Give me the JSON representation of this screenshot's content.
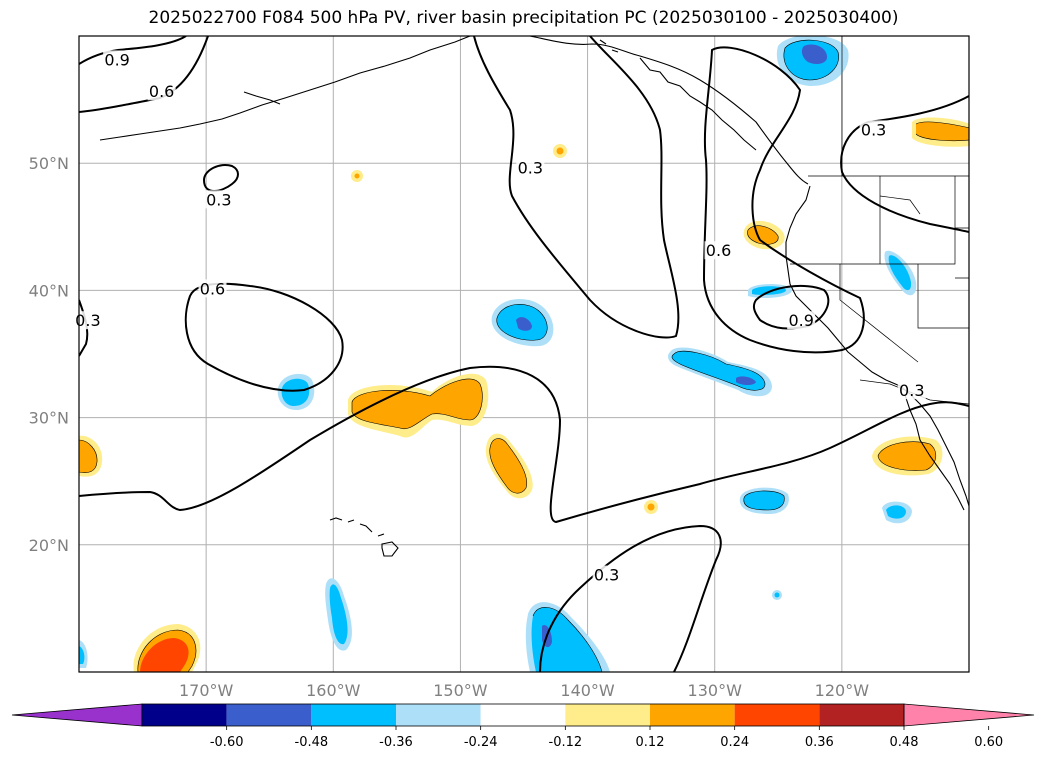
{
  "title": "2025022700 F084 500 hPa PV, river basin precipitation PC (2025030100 - 2025030400)",
  "map": {
    "lon_range": [
      -180,
      -110
    ],
    "lat_range": [
      10,
      60
    ],
    "lat_ticks": [
      {
        "value": 20,
        "label": "20°N"
      },
      {
        "value": 30,
        "label": "30°N"
      },
      {
        "value": 40,
        "label": "40°N"
      },
      {
        "value": 50,
        "label": "50°N"
      }
    ],
    "lon_ticks": [
      {
        "value": -170,
        "label": "170°W"
      },
      {
        "value": -160,
        "label": "160°W"
      },
      {
        "value": -150,
        "label": "150°W"
      },
      {
        "value": -140,
        "label": "140°W"
      },
      {
        "value": -130,
        "label": "130°W"
      },
      {
        "value": -120,
        "label": "120°W"
      }
    ],
    "grid": true,
    "contour_labels": [
      {
        "text": "0.9",
        "lon": -177,
        "lat": 58
      },
      {
        "text": "0.6",
        "lon": -173.5,
        "lat": 55.5
      },
      {
        "text": "0.3",
        "lon": -169,
        "lat": 47
      },
      {
        "text": "0.3",
        "lon": -144.5,
        "lat": 49.5
      },
      {
        "text": "0.6",
        "lon": -169.5,
        "lat": 40
      },
      {
        "text": "0.3",
        "lon": -179.3,
        "lat": 37.5
      },
      {
        "text": "0.6",
        "lon": -129.7,
        "lat": 43
      },
      {
        "text": "0.9",
        "lon": -123.2,
        "lat": 37.5
      },
      {
        "text": "0.3",
        "lon": -117.5,
        "lat": 52.5
      },
      {
        "text": "0.3",
        "lon": -114.5,
        "lat": 32
      },
      {
        "text": "0.3",
        "lon": -138.5,
        "lat": 17.5
      }
    ]
  },
  "colorbar": {
    "levels": [
      "-0.60",
      "-0.48",
      "-0.36",
      "-0.24",
      "-0.12",
      "0.12",
      "0.24",
      "0.36",
      "0.48",
      "0.60"
    ],
    "colors": [
      "#9932CC",
      "#00008B",
      "#3A5FCD",
      "#00BFFF",
      "#ADE0F8",
      "#FFFFFF",
      "#FFEC8B",
      "#FFA500",
      "#FF4500",
      "#B22222",
      "#FF82AB"
    ]
  }
}
